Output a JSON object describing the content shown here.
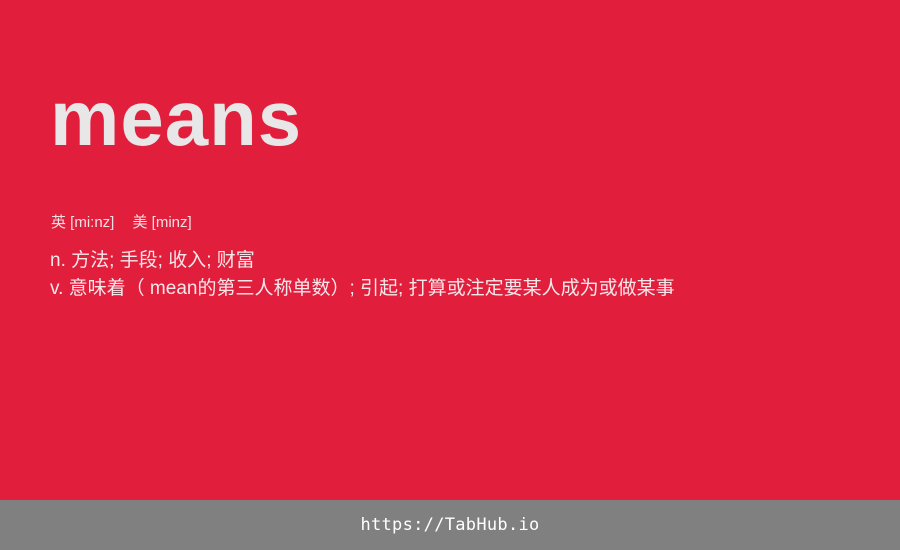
{
  "word": "means",
  "phonetics": {
    "uk": "英 [mi:nz]",
    "us": "美 [minz]"
  },
  "definitions": [
    "n. 方法; 手段; 收入; 财富",
    "v. 意味着（  mean的第三人称单数）; 引起; 打算或注定要某人成为或做某事"
  ],
  "footer": {
    "url": "https://TabHub.io"
  },
  "colors": {
    "background": "#e11e3c",
    "footer": "#808080",
    "headword": "#e8e6e6"
  }
}
